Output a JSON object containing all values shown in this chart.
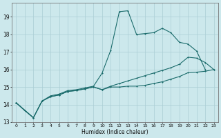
{
  "xlabel": "Humidex (Indice chaleur)",
  "bg_color": "#cce8ec",
  "line_color": "#1a6b6b",
  "grid_color": "#aacdd4",
  "xlim": [
    -0.5,
    23.5
  ],
  "ylim": [
    13,
    19.8
  ],
  "yticks": [
    13,
    14,
    15,
    16,
    17,
    18,
    19
  ],
  "xtick_labels": [
    "0",
    "1",
    "2",
    "3",
    "4",
    "5",
    "6",
    "7",
    "8",
    "9",
    "10",
    "11",
    "12",
    "13",
    "14",
    "15",
    "16",
    "17",
    "18",
    "19",
    "20",
    "21",
    "22",
    "23"
  ],
  "line1_x": [
    0,
    1,
    2,
    3,
    4,
    5,
    6,
    7,
    8,
    9,
    10,
    11,
    12,
    13,
    14,
    15,
    16,
    17,
    18,
    19,
    20,
    21,
    22
  ],
  "line1_y": [
    14.1,
    13.65,
    13.25,
    14.2,
    14.5,
    14.6,
    14.8,
    14.85,
    14.95,
    15.05,
    15.8,
    17.1,
    19.3,
    19.35,
    18.0,
    18.05,
    18.1,
    18.35,
    18.1,
    17.55,
    17.45,
    17.05,
    16.0
  ],
  "line2_x": [
    0,
    2,
    3,
    4,
    5,
    6,
    7,
    8,
    9,
    10,
    11,
    12,
    13,
    14,
    15,
    16,
    17,
    18,
    19,
    20,
    21,
    22,
    23
  ],
  "line2_y": [
    14.1,
    13.25,
    14.2,
    14.45,
    14.55,
    14.75,
    14.8,
    14.9,
    15.0,
    14.85,
    15.05,
    15.2,
    15.35,
    15.5,
    15.65,
    15.8,
    15.95,
    16.1,
    16.3,
    16.7,
    16.65,
    16.4,
    16.0
  ],
  "line3_x": [
    0,
    2,
    3,
    4,
    5,
    6,
    7,
    8,
    9,
    10,
    11,
    12,
    13,
    14,
    15,
    16,
    17,
    18,
    19,
    20,
    21,
    22,
    23
  ],
  "line3_y": [
    14.1,
    13.25,
    14.2,
    14.45,
    14.55,
    14.75,
    14.8,
    14.9,
    15.0,
    14.85,
    15.0,
    15.0,
    15.05,
    15.05,
    15.1,
    15.2,
    15.3,
    15.45,
    15.6,
    15.82,
    15.85,
    15.9,
    16.0
  ]
}
